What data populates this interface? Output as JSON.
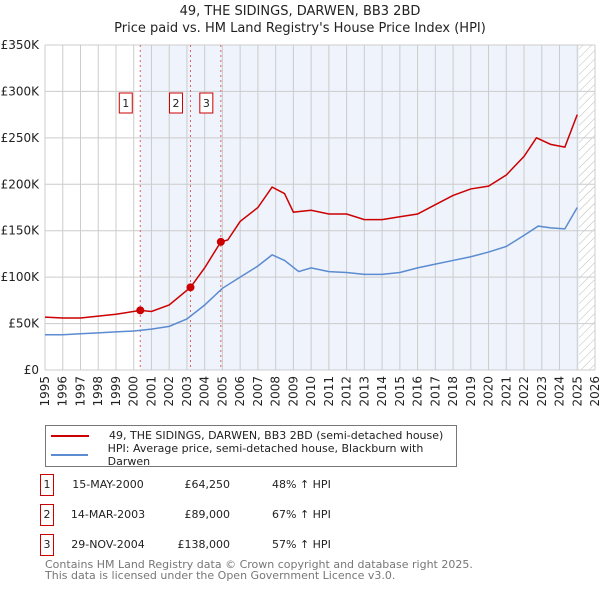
{
  "chart_data": {
    "type": "line",
    "title": "49, THE SIDINGS, DARWEN, BB3 2BD",
    "subtitle": "Price paid vs. HM Land Registry's House Price Index (HPI)",
    "xlim": [
      1995,
      2026
    ],
    "ylim": [
      0,
      350000
    ],
    "x_ticks": [
      "1995",
      "1996",
      "1997",
      "1998",
      "1999",
      "2000",
      "2001",
      "2002",
      "2003",
      "2004",
      "2005",
      "2006",
      "2007",
      "2008",
      "2009",
      "2010",
      "2011",
      "2012",
      "2013",
      "2014",
      "2015",
      "2016",
      "2017",
      "2018",
      "2019",
      "2020",
      "2021",
      "2022",
      "2023",
      "2024",
      "2025",
      "2026"
    ],
    "y_ticks": [
      {
        "v": 0,
        "label": "£0"
      },
      {
        "v": 50000,
        "label": "£50K"
      },
      {
        "v": 100000,
        "label": "£100K"
      },
      {
        "v": 150000,
        "label": "£150K"
      },
      {
        "v": 200000,
        "label": "£200K"
      },
      {
        "v": 250000,
        "label": "£250K"
      },
      {
        "v": 300000,
        "label": "£300K"
      },
      {
        "v": 350000,
        "label": "£350K"
      }
    ],
    "grid": true,
    "series": [
      {
        "name": "49, THE SIDINGS, DARWEN, BB3 2BD (semi-detached house)",
        "color": "#cc0000",
        "x": [
          1995,
          1996,
          1997,
          1998,
          1999,
          2000.37,
          2001,
          2002,
          2003.2,
          2004,
          2004.91,
          2005.3,
          2006,
          2007,
          2007.8,
          2008.5,
          2009,
          2010,
          2011,
          2012,
          2013,
          2014,
          2015,
          2016,
          2017,
          2018,
          2019,
          2020,
          2021,
          2022,
          2022.7,
          2023.5,
          2024.3,
          2025
        ],
        "y": [
          57000,
          56000,
          56000,
          58000,
          60000,
          64250,
          63000,
          70000,
          89000,
          110000,
          138000,
          140000,
          160000,
          175000,
          197000,
          190000,
          170000,
          172000,
          168000,
          168000,
          162000,
          162000,
          165000,
          168000,
          178000,
          188000,
          195000,
          198000,
          210000,
          230000,
          250000,
          243000,
          240000,
          275000
        ]
      },
      {
        "name": "HPI: Average price, semi-detached house, Blackburn with Darwen",
        "color": "#5b8bd0",
        "x": [
          1995,
          1996,
          1997,
          1998,
          1999,
          2000,
          2001,
          2002,
          2003,
          2004,
          2005,
          2006,
          2007,
          2007.8,
          2008.5,
          2009.3,
          2010,
          2011,
          2012,
          2013,
          2014,
          2015,
          2016,
          2017,
          2018,
          2019,
          2020,
          2021,
          2022,
          2022.8,
          2023.5,
          2024.3,
          2025
        ],
        "y": [
          38000,
          38000,
          39000,
          40000,
          41000,
          42000,
          44000,
          47000,
          55000,
          70000,
          88000,
          100000,
          112000,
          124000,
          118000,
          106000,
          110000,
          106000,
          105000,
          103000,
          103000,
          105000,
          110000,
          114000,
          118000,
          122000,
          127000,
          133000,
          145000,
          155000,
          153000,
          152000,
          175000
        ]
      }
    ],
    "sales": [
      {
        "label": "1",
        "x": 2000.37,
        "y": 64250,
        "date": "15-MAY-2000",
        "price": "£64,250",
        "hpi": "48% ↑ HPI"
      },
      {
        "label": "2",
        "x": 2003.2,
        "y": 89000,
        "date": "14-MAR-2003",
        "price": "£89,000",
        "hpi": "67% ↑ HPI"
      },
      {
        "label": "3",
        "x": 2004.91,
        "y": 138000,
        "date": "29-NOV-2004",
        "price": "£138,000",
        "hpi": "57% ↑ HPI"
      }
    ],
    "forecast_start": 2025.1
  },
  "footer": [
    "Contains HM Land Registry data © Crown copyright and database right 2025.",
    "This data is licensed under the Open Government Licence v3.0."
  ]
}
